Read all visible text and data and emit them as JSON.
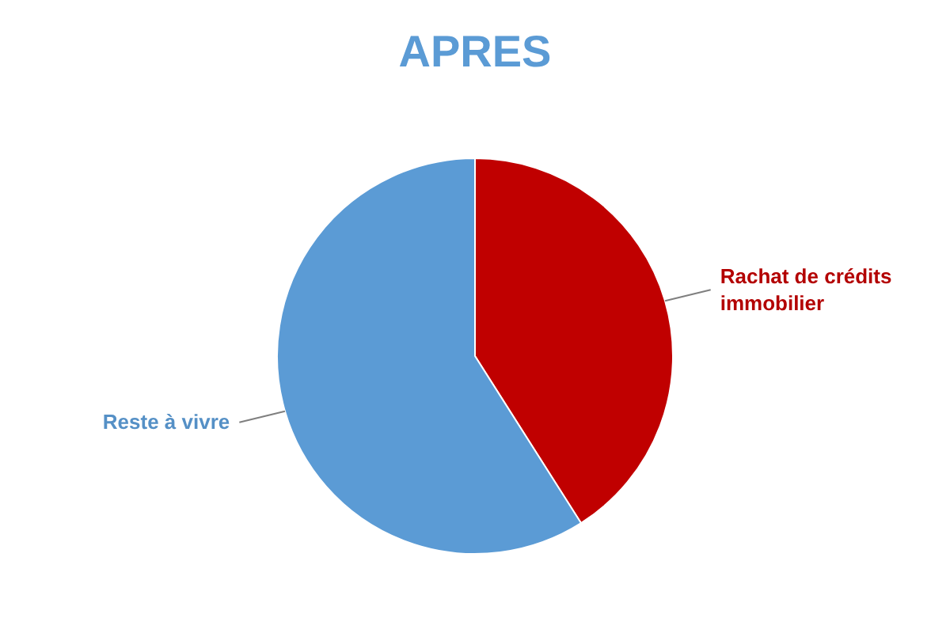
{
  "chart_data": {
    "type": "pie",
    "title": "APRES",
    "categories": [
      "Rachat de crédits immobilier",
      "Reste à vivre"
    ],
    "values": [
      41,
      59
    ],
    "colors": [
      "#c00000",
      "#5b9bd5"
    ]
  }
}
